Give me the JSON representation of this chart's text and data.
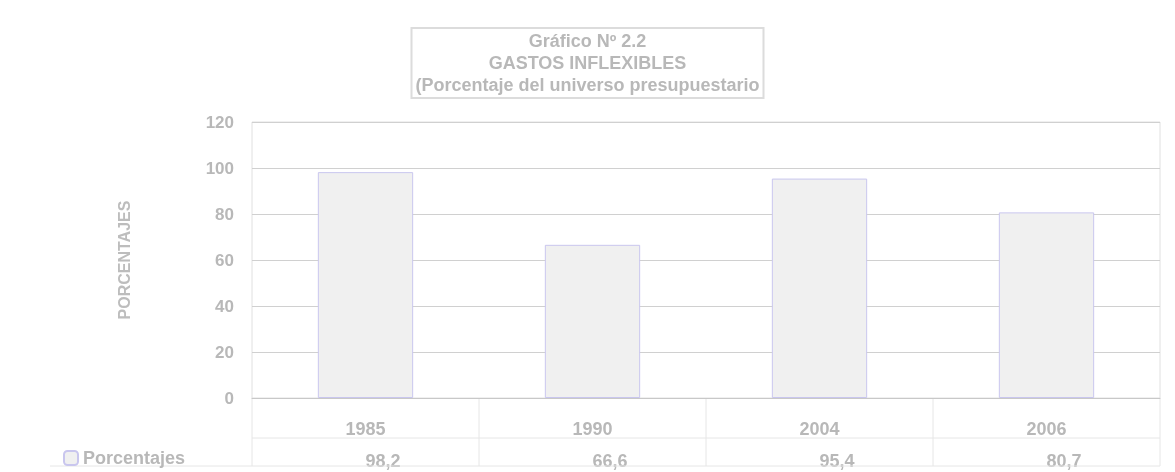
{
  "chart_data": {
    "type": "bar",
    "title": "Gráfico Nº 2.2\nGASTOS INFLEXIBLES\n(Porcentaje del universo presupuestario",
    "ylabel": "PORCENTAJES",
    "categories": [
      "1985",
      "1990",
      "2004",
      "2006"
    ],
    "series": [
      {
        "name": "Porcentajes",
        "color": "#f0f0f0",
        "values": [
          98.2,
          66.6,
          95.4,
          80.7
        ],
        "value_labels": [
          "98,2",
          "66,6",
          "95,4",
          "80,7"
        ]
      }
    ],
    "ylim": [
      0,
      120
    ],
    "yticks": [
      0,
      20,
      40,
      60,
      80,
      100,
      120
    ],
    "grid": "y",
    "legend": "bottom left"
  }
}
